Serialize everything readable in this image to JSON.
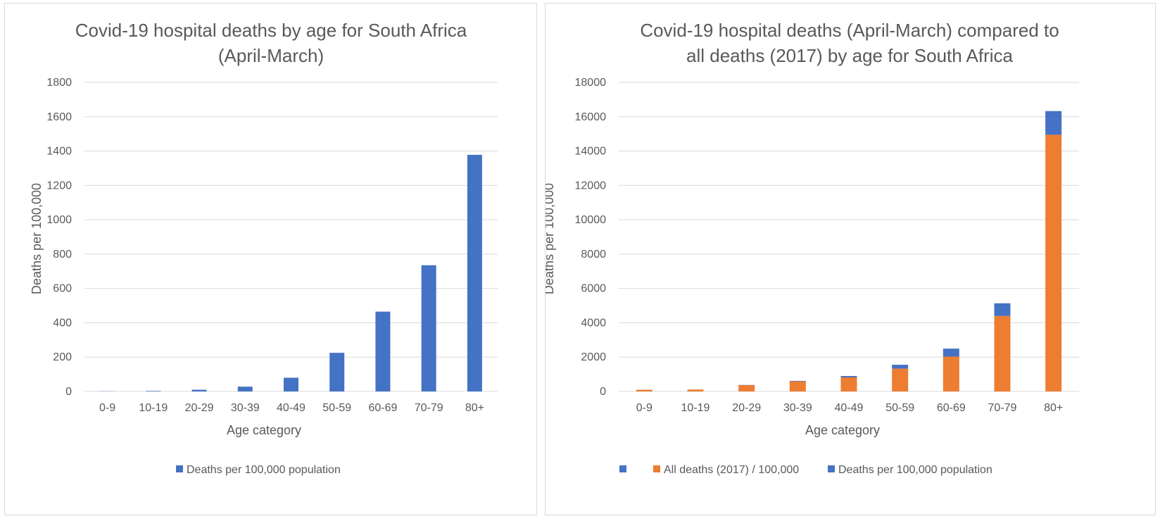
{
  "chart_data": [
    {
      "type": "bar",
      "title_lines": [
        "Covid-19 hospital deaths by age for South Africa",
        "(April-March)"
      ],
      "xlabel": "Age category",
      "ylabel": "Deaths per 100,000",
      "ylim": [
        0,
        1800
      ],
      "yticks": [
        "0",
        "200",
        "400",
        "600",
        "800",
        "1000",
        "1200",
        "1400",
        "1600",
        "1800"
      ],
      "categories": [
        "0-9",
        "10-19",
        "20-29",
        "30-39",
        "40-49",
        "50-59",
        "60-69",
        "70-79",
        "80+"
      ],
      "grid": true,
      "legend_position": "bottom",
      "series": [
        {
          "name": "Deaths per 100,000 population",
          "color": "#4472c4",
          "values": [
            1,
            3,
            10,
            28,
            80,
            225,
            465,
            735,
            1378
          ]
        }
      ]
    },
    {
      "type": "bar",
      "stacked": true,
      "title_lines": [
        "Covid-19 hospital deaths (April-March) compared to",
        "all deaths (2017) by age for South Africa"
      ],
      "xlabel": "Age category",
      "ylabel": "Deaths per 100,000",
      "ylim": [
        0,
        18000
      ],
      "yticks": [
        "0",
        "2000",
        "4000",
        "6000",
        "8000",
        "10000",
        "12000",
        "14000",
        "16000",
        "18000"
      ],
      "categories": [
        "0-9",
        "10-19",
        "20-29",
        "30-39",
        "40-49",
        "50-59",
        "60-69",
        "70-79",
        "80+"
      ],
      "grid": true,
      "legend_position": "bottom",
      "legend": [
        {
          "name": "",
          "color": "#4472c4"
        },
        {
          "name": "All deaths (2017) / 100,000",
          "color": "#ed7d31"
        },
        {
          "name": "Deaths per 100,000 population",
          "color": "#4472c4"
        }
      ],
      "series": [
        {
          "name": "All deaths (2017) / 100,000",
          "color": "#ed7d31",
          "values": [
            100,
            110,
            370,
            590,
            820,
            1330,
            2030,
            4400,
            14950
          ]
        },
        {
          "name": "Deaths per 100,000 population",
          "color": "#4472c4",
          "values": [
            1,
            3,
            10,
            28,
            80,
            225,
            465,
            735,
            1378
          ]
        }
      ]
    }
  ]
}
